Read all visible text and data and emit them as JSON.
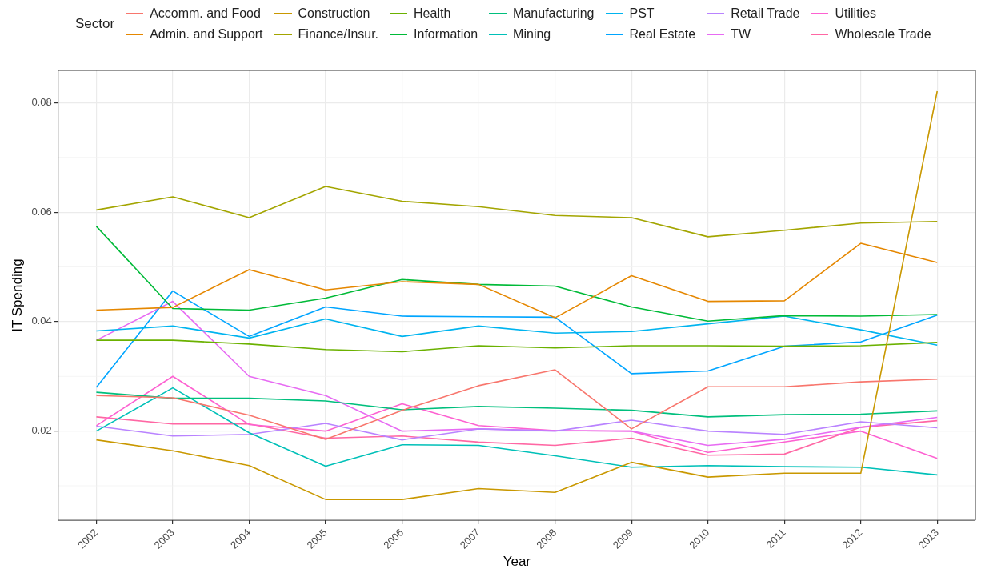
{
  "chart_data": {
    "type": "line",
    "xlabel": "Year",
    "ylabel": "IT Spending",
    "legend_title": "Sector",
    "legend": "top",
    "grid": true,
    "line_style": "solid",
    "marker": "none",
    "categories": [
      "2002",
      "2003",
      "2004",
      "2005",
      "2006",
      "2007",
      "2008",
      "2009",
      "2010",
      "2011",
      "2012",
      "2013"
    ],
    "ylim": [
      0.0037,
      0.0859
    ],
    "yticks": [
      0.02,
      0.04,
      0.06,
      0.08
    ],
    "series": [
      {
        "name": "Accomm. and Food",
        "color": "#f8766d",
        "values": [
          0.0265,
          0.0261,
          0.0229,
          0.0185,
          0.0238,
          0.0283,
          0.0312,
          0.0204,
          0.0281,
          0.0281,
          0.029,
          0.0295
        ]
      },
      {
        "name": "Admin. and Support",
        "color": "#e58700",
        "values": [
          0.0421,
          0.0426,
          0.0495,
          0.0458,
          0.0473,
          0.0468,
          0.0407,
          0.0484,
          0.0437,
          0.0438,
          0.0543,
          0.0508
        ]
      },
      {
        "name": "Construction",
        "color": "#c99800",
        "values": [
          0.0184,
          0.0164,
          0.0137,
          0.0075,
          0.0075,
          0.0095,
          0.0088,
          0.0143,
          0.0116,
          0.0123,
          0.0123,
          0.0821
        ]
      },
      {
        "name": "Finance/Insur.",
        "color": "#a3a500",
        "values": [
          0.0604,
          0.0628,
          0.059,
          0.0647,
          0.062,
          0.061,
          0.0594,
          0.059,
          0.0555,
          0.0567,
          0.058,
          0.0583
        ]
      },
      {
        "name": "Health",
        "color": "#6bb100",
        "values": [
          0.0366,
          0.0366,
          0.0359,
          0.0349,
          0.0345,
          0.0356,
          0.0352,
          0.0356,
          0.0356,
          0.0355,
          0.0356,
          0.0362
        ]
      },
      {
        "name": "Information",
        "color": "#00ba38",
        "values": [
          0.0574,
          0.0424,
          0.0421,
          0.0443,
          0.0477,
          0.0468,
          0.0465,
          0.0427,
          0.0401,
          0.0411,
          0.041,
          0.0413
        ]
      },
      {
        "name": "Manufacturing",
        "color": "#00bf7d",
        "values": [
          0.0271,
          0.026,
          0.026,
          0.0255,
          0.0239,
          0.0245,
          0.0242,
          0.0238,
          0.0226,
          0.023,
          0.0231,
          0.0237
        ]
      },
      {
        "name": "Mining",
        "color": "#00c0b8",
        "values": [
          0.02,
          0.0279,
          0.0197,
          0.0136,
          0.0175,
          0.0174,
          0.0155,
          0.0134,
          0.0137,
          0.0135,
          0.0134,
          0.012
        ]
      },
      {
        "name": "PST",
        "color": "#00b4ef",
        "values": [
          0.0383,
          0.0392,
          0.037,
          0.0405,
          0.0373,
          0.0392,
          0.0379,
          0.0382,
          0.0396,
          0.041,
          0.0385,
          0.0357
        ]
      },
      {
        "name": "Real Estate",
        "color": "#00a5ff",
        "values": [
          0.028,
          0.0456,
          0.0373,
          0.0427,
          0.041,
          0.0409,
          0.0408,
          0.0305,
          0.031,
          0.0355,
          0.0363,
          0.0412
        ]
      },
      {
        "name": "Retail Trade",
        "color": "#b983ff",
        "values": [
          0.0209,
          0.0191,
          0.0194,
          0.0214,
          0.0184,
          0.0204,
          0.02,
          0.022,
          0.02,
          0.0194,
          0.0217,
          0.0206
        ]
      },
      {
        "name": "TW",
        "color": "#e76bf3",
        "values": [
          0.0366,
          0.0437,
          0.03,
          0.0265,
          0.02,
          0.0204,
          0.0201,
          0.02,
          0.0174,
          0.0185,
          0.0207,
          0.0225
        ]
      },
      {
        "name": "Utilities",
        "color": "#fd61d1",
        "values": [
          0.021,
          0.03,
          0.0212,
          0.02,
          0.025,
          0.021,
          0.0201,
          0.02,
          0.0161,
          0.018,
          0.02,
          0.015
        ]
      },
      {
        "name": "Wholesale Trade",
        "color": "#ff67a4",
        "values": [
          0.0226,
          0.0213,
          0.0213,
          0.0187,
          0.0191,
          0.018,
          0.0174,
          0.0187,
          0.0156,
          0.0158,
          0.0207,
          0.0219
        ]
      }
    ]
  }
}
